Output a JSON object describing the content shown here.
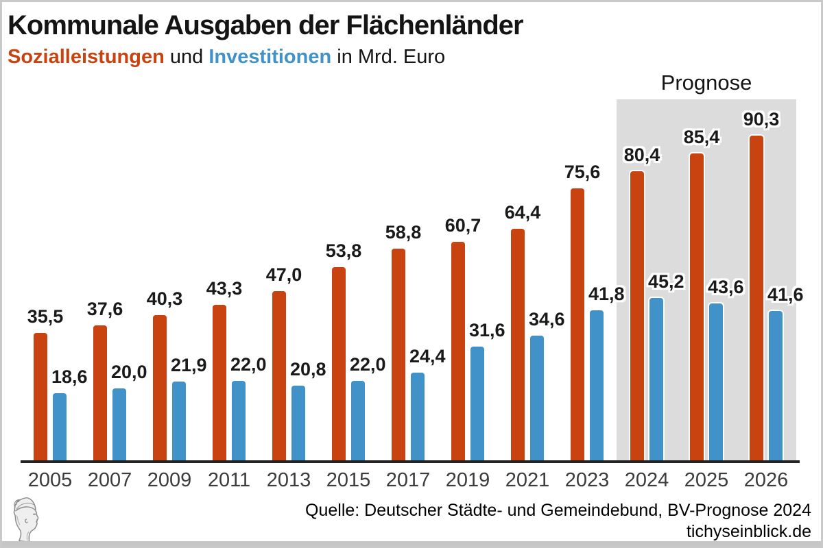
{
  "title": "Kommunale Ausgaben der Flächenländer",
  "subtitle": {
    "series1": "Sozialleistungen",
    "connector": " und ",
    "series2": "Investitionen",
    "suffix": " in Mrd. Euro"
  },
  "forecast_label": "Prognose",
  "source": {
    "line1": "Quelle: Deutscher Städte- und Gemeindebund, BV-Prognose 2024",
    "line2": "tichyseinblick.de"
  },
  "logo_icon": "hermes-head-sketch-icon",
  "colors": {
    "sozialleistungen": "#c8430f",
    "investitionen": "#4092c8",
    "forecast_background": "#dcdcdc",
    "axis": "#222222",
    "frame_border": "#c9c9c9"
  },
  "chart_data": {
    "type": "bar",
    "categories": [
      "2005",
      "2007",
      "2009",
      "2011",
      "2013",
      "2015",
      "2017",
      "2019",
      "2021",
      "2023",
      "2024",
      "2025",
      "2026"
    ],
    "series": [
      {
        "name": "Sozialleistungen",
        "color": "#c8430f",
        "values": [
          35.5,
          37.6,
          40.3,
          43.3,
          47.0,
          53.8,
          58.8,
          60.7,
          64.4,
          75.6,
          80.4,
          85.4,
          90.3
        ]
      },
      {
        "name": "Investitionen",
        "color": "#4092c8",
        "values": [
          18.6,
          20.0,
          21.9,
          22.0,
          20.8,
          22.0,
          24.4,
          31.6,
          34.6,
          41.8,
          45.2,
          43.6,
          41.6
        ]
      }
    ],
    "forecast_categories": [
      "2024",
      "2025",
      "2026"
    ],
    "title": "Kommunale Ausgaben der Flächenländer",
    "subtitle": "Sozialleistungen und Investitionen in Mrd. Euro",
    "ylabel": "Mrd. Euro",
    "ylim": [
      0,
      101
    ],
    "grid": false,
    "legend_position": "in-subtitle",
    "value_format": "decimal-comma"
  }
}
